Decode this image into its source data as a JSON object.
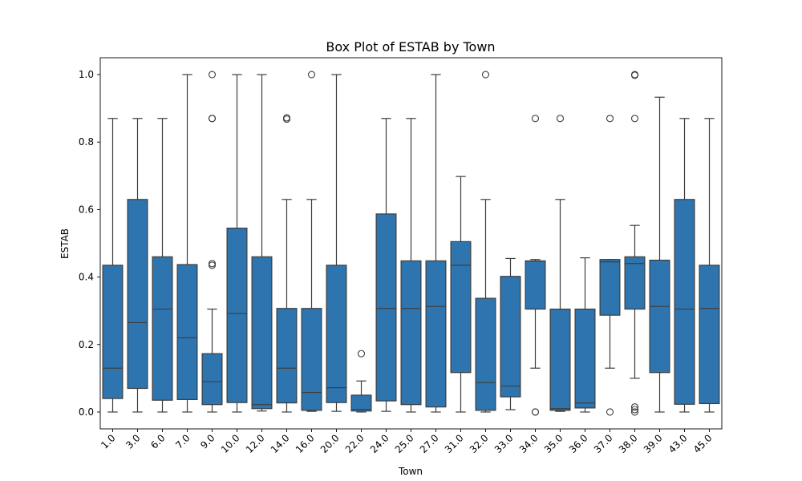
{
  "chart_data": {
    "type": "box",
    "title": "Box Plot of ESTAB by Town",
    "xlabel": "Town",
    "ylabel": "ESTAB",
    "ylim": [
      -0.05,
      1.05
    ],
    "yticks": [
      "0.0",
      "0.2",
      "0.4",
      "0.6",
      "0.8",
      "1.0"
    ],
    "box_color": "#2e75b0",
    "line_color": "#3d3d3d",
    "grid": false,
    "categories": [
      "1.0",
      "3.0",
      "6.0",
      "7.0",
      "9.0",
      "10.0",
      "12.0",
      "14.0",
      "16.0",
      "20.0",
      "22.0",
      "24.0",
      "25.0",
      "27.0",
      "31.0",
      "32.0",
      "33.0",
      "34.0",
      "35.0",
      "36.0",
      "37.0",
      "38.0",
      "39.0",
      "43.0",
      "45.0"
    ],
    "boxes": [
      {
        "whislo": 0.0,
        "q1": 0.04,
        "med": 0.13,
        "q3": 0.435,
        "whishi": 0.87,
        "fliers": []
      },
      {
        "whislo": 0.0,
        "q1": 0.07,
        "med": 0.265,
        "q3": 0.63,
        "whishi": 0.87,
        "fliers": []
      },
      {
        "whislo": 0.0,
        "q1": 0.035,
        "med": 0.305,
        "q3": 0.46,
        "whishi": 0.87,
        "fliers": []
      },
      {
        "whislo": 0.0,
        "q1": 0.037,
        "med": 0.22,
        "q3": 0.437,
        "whishi": 1.0,
        "fliers": []
      },
      {
        "whislo": 0.0,
        "q1": 0.022,
        "med": 0.09,
        "q3": 0.173,
        "whishi": 0.305,
        "fliers": [
          0.435,
          0.44,
          0.87,
          0.87,
          1.0
        ]
      },
      {
        "whislo": 0.0,
        "q1": 0.028,
        "med": 0.292,
        "q3": 0.545,
        "whishi": 1.0,
        "fliers": []
      },
      {
        "whislo": 0.003,
        "q1": 0.01,
        "med": 0.022,
        "q3": 0.46,
        "whishi": 1.0,
        "fliers": []
      },
      {
        "whislo": 0.0,
        "q1": 0.027,
        "med": 0.13,
        "q3": 0.307,
        "whishi": 0.63,
        "fliers": [
          0.868,
          0.872
        ]
      },
      {
        "whislo": 0.002,
        "q1": 0.005,
        "med": 0.058,
        "q3": 0.307,
        "whishi": 0.63,
        "fliers": [
          1.0
        ]
      },
      {
        "whislo": 0.002,
        "q1": 0.028,
        "med": 0.072,
        "q3": 0.435,
        "whishi": 1.0,
        "fliers": []
      },
      {
        "whislo": 0.0,
        "q1": 0.003,
        "med": 0.008,
        "q3": 0.05,
        "whishi": 0.092,
        "fliers": [
          0.173
        ]
      },
      {
        "whislo": 0.002,
        "q1": 0.033,
        "med": 0.307,
        "q3": 0.587,
        "whishi": 0.87,
        "fliers": []
      },
      {
        "whislo": 0.0,
        "q1": 0.022,
        "med": 0.307,
        "q3": 0.448,
        "whishi": 0.87,
        "fliers": []
      },
      {
        "whislo": 0.0,
        "q1": 0.015,
        "med": 0.313,
        "q3": 0.448,
        "whishi": 1.0,
        "fliers": []
      },
      {
        "whislo": 0.0,
        "q1": 0.117,
        "med": 0.435,
        "q3": 0.505,
        "whishi": 0.698,
        "fliers": []
      },
      {
        "whislo": 0.0,
        "q1": 0.005,
        "med": 0.087,
        "q3": 0.337,
        "whishi": 0.63,
        "fliers": [
          1.0
        ]
      },
      {
        "whislo": 0.007,
        "q1": 0.045,
        "med": 0.077,
        "q3": 0.402,
        "whishi": 0.455,
        "fliers": []
      },
      {
        "whislo": 0.13,
        "q1": 0.305,
        "med": 0.447,
        "q3": 0.448,
        "whishi": 0.452,
        "fliers": [
          0.0,
          0.0,
          0.87
        ]
      },
      {
        "whislo": 0.002,
        "q1": 0.005,
        "med": 0.01,
        "q3": 0.305,
        "whishi": 0.63,
        "fliers": [
          0.87
        ]
      },
      {
        "whislo": 0.0,
        "q1": 0.012,
        "med": 0.027,
        "q3": 0.305,
        "whishi": 0.457,
        "fliers": []
      },
      {
        "whislo": 0.13,
        "q1": 0.287,
        "med": 0.445,
        "q3": 0.452,
        "whishi": 0.452,
        "fliers": [
          0.0,
          0.87
        ]
      },
      {
        "whislo": 0.1,
        "q1": 0.305,
        "med": 0.44,
        "q3": 0.46,
        "whishi": 0.553,
        "fliers": [
          0.0,
          0.007,
          0.015,
          0.87,
          0.998,
          1.0
        ]
      },
      {
        "whislo": 0.0,
        "q1": 0.117,
        "med": 0.313,
        "q3": 0.45,
        "whishi": 0.933,
        "fliers": []
      },
      {
        "whislo": 0.0,
        "q1": 0.023,
        "med": 0.305,
        "q3": 0.63,
        "whishi": 0.87,
        "fliers": []
      },
      {
        "whislo": 0.0,
        "q1": 0.025,
        "med": 0.307,
        "q3": 0.435,
        "whishi": 0.87,
        "fliers": []
      }
    ]
  }
}
